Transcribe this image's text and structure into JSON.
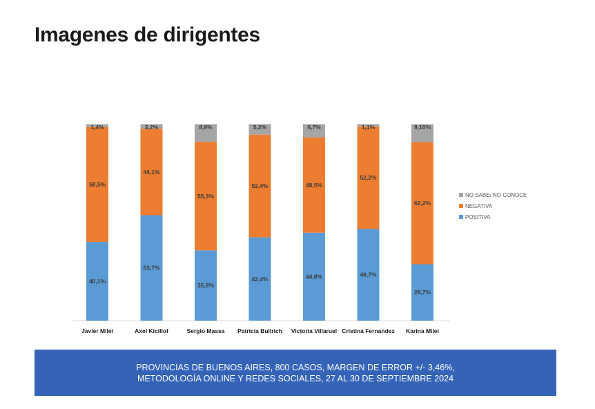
{
  "page": {
    "title": "Imagenes de dirigentes"
  },
  "colors": {
    "positiva": "#5b9bd5",
    "negativa": "#ed7d31",
    "no_sabe": "#a5a5a5",
    "footer_bg": "#3563b8"
  },
  "chart_data": {
    "type": "bar",
    "stacked": true,
    "categories": [
      "Javier Milei",
      "Axel Kicillof",
      "Sergio Massa",
      "Patricia Bullrich",
      "Victoria Villaruel",
      "Cristina Fernandez",
      "Karina Milei"
    ],
    "series": [
      {
        "name": "POSITIVA",
        "values": [
          40.1,
          53.7,
          35.8,
          42.4,
          44.8,
          46.7,
          28.7
        ],
        "labels": [
          "40,1%",
          "53,7%",
          "35,8%",
          "42,4%",
          "44,8%",
          "46,7%",
          "28,7%"
        ]
      },
      {
        "name": "NEGATIVA",
        "values": [
          58.5,
          44.1,
          55.3,
          52.4,
          48.5,
          52.2,
          62.2
        ],
        "labels": [
          "58,5%",
          "44,1%",
          "55,3%",
          "52,4%",
          "48,5%",
          "52,2%",
          "62,2%"
        ]
      },
      {
        "name": "NO SABE/ NO CONOCE",
        "values": [
          1.4,
          2.2,
          8.9,
          5.2,
          6.7,
          1.1,
          9.1
        ],
        "labels": [
          "1,4%",
          "2,2%",
          "8,9%",
          "5,2%",
          "6,7%",
          "1,1%",
          "9,10%"
        ]
      }
    ],
    "legend_order": [
      "NO SABE/ NO CONOCE",
      "NEGATIVA",
      "POSITIVA"
    ],
    "legend_position": "right",
    "ylim": [
      0,
      100
    ],
    "grid": false
  },
  "footer": {
    "line1": "PROVINCIAS DE BUENOS AIRES, 800 CASOS, MARGEN DE ERROR +/- 3,46%,",
    "line2": "METODOLOGÍA ONLINE Y REDES SOCIALES, 27 AL 30 DE SEPTIEMBRE 2024"
  }
}
